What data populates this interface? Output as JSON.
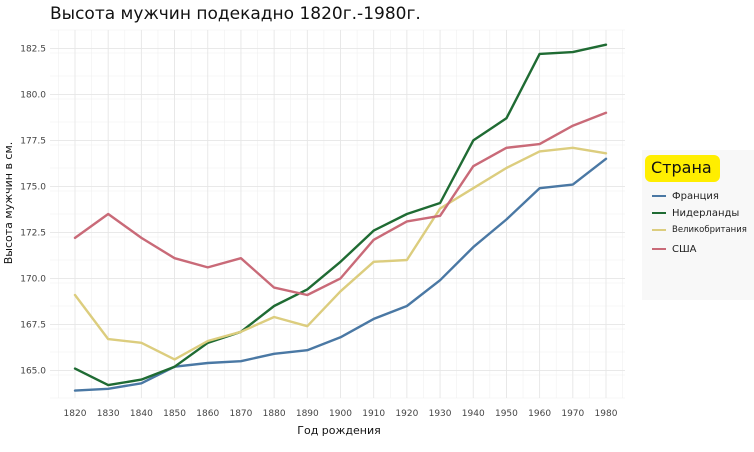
{
  "chart_data": {
    "type": "line",
    "title": "Высота мужчин подекадно 1820г.-1980г.",
    "xlabel": "Год рождения",
    "ylabel": "Высота мужчин в см.",
    "x": [
      1820,
      1830,
      1840,
      1850,
      1860,
      1870,
      1880,
      1890,
      1900,
      1910,
      1920,
      1930,
      1940,
      1950,
      1960,
      1970,
      1980
    ],
    "xlim": [
      1820,
      1980
    ],
    "ylim": [
      163.5,
      183.5
    ],
    "yticks": [
      "165.0",
      "167.5",
      "170.0",
      "172.5",
      "175.0",
      "177.5",
      "180.0",
      "182.5"
    ],
    "xticks": [
      "1820",
      "1830",
      "1840",
      "1850",
      "1860",
      "1870",
      "1880",
      "1890",
      "1900",
      "1910",
      "1920",
      "1930",
      "1940",
      "1950",
      "1960",
      "1970",
      "1980"
    ],
    "grid": true,
    "legend_title": "Страна",
    "legend_position": "right",
    "series": [
      {
        "name": "Франция",
        "color": "#4a78a4",
        "values": [
          163.9,
          164.0,
          164.3,
          165.2,
          165.4,
          165.5,
          165.9,
          166.1,
          166.8,
          167.8,
          168.5,
          169.9,
          171.7,
          173.2,
          174.9,
          175.1,
          176.5
        ]
      },
      {
        "name": "Нидерланды",
        "color": "#1f6b33",
        "values": [
          165.1,
          164.2,
          164.5,
          165.2,
          166.5,
          167.1,
          168.5,
          169.4,
          170.9,
          172.6,
          173.5,
          174.1,
          177.5,
          178.7,
          182.2,
          182.3,
          182.7
        ]
      },
      {
        "name": "Великобритания",
        "color": "#dccd7e",
        "values": [
          169.1,
          166.7,
          166.5,
          165.6,
          166.6,
          167.1,
          167.9,
          167.4,
          169.3,
          170.9,
          171.0,
          173.8,
          174.9,
          176.0,
          176.9,
          177.1,
          176.8
        ]
      },
      {
        "name": "США",
        "color": "#c96a78",
        "values": [
          172.2,
          173.5,
          172.2,
          171.1,
          170.6,
          171.1,
          169.5,
          169.1,
          170.0,
          172.1,
          173.1,
          173.4,
          176.1,
          177.1,
          177.3,
          178.3,
          179.0
        ]
      }
    ]
  }
}
